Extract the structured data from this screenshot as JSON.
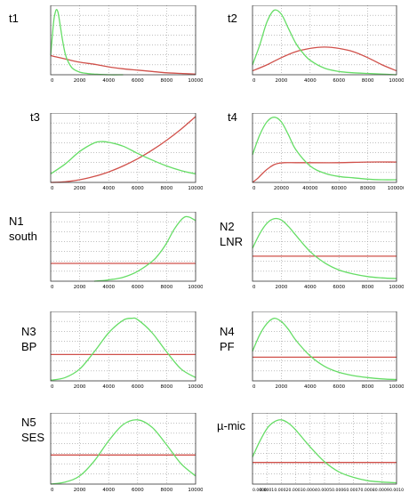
{
  "colors": {
    "prior": "#d0504a",
    "posterior": "#66dd66",
    "grid": "#999999",
    "frame": "#333333"
  },
  "chart_data": [
    {
      "id": "t1",
      "type": "line",
      "label_lines": [
        "t1"
      ],
      "xlim": [
        0,
        10000
      ],
      "ylim": [
        0,
        1
      ],
      "xticks": [
        "0",
        "2000",
        "4000",
        "6000",
        "8000",
        "10000"
      ],
      "series": [
        {
          "role": "prior",
          "color": "#d0504a",
          "x": [
            0,
            1000,
            2000,
            3000,
            4000,
            5000,
            6000,
            7000,
            8000,
            9000,
            10000
          ],
          "y": [
            0.29,
            0.24,
            0.19,
            0.16,
            0.12,
            0.09,
            0.07,
            0.05,
            0.03,
            0.02,
            0.01
          ]
        },
        {
          "role": "posterior",
          "color": "#66dd66",
          "x": [
            0,
            100,
            200,
            300,
            400,
            500,
            600,
            800,
            1000,
            1200,
            1500,
            2000,
            2500,
            3000,
            4000,
            5000
          ],
          "y": [
            0.3,
            0.55,
            0.8,
            0.93,
            0.99,
            0.95,
            0.83,
            0.55,
            0.32,
            0.2,
            0.1,
            0.04,
            0.02,
            0.01,
            0.0,
            0.0
          ]
        }
      ]
    },
    {
      "id": "t2",
      "type": "line",
      "label_lines": [
        "t2"
      ],
      "xlim": [
        0,
        10000
      ],
      "ylim": [
        0,
        1
      ],
      "xticks": [
        "0",
        "2000",
        "4000",
        "6000",
        "8000",
        "10000"
      ],
      "series": [
        {
          "role": "prior",
          "color": "#d0504a",
          "x": [
            0,
            1000,
            2000,
            3000,
            4000,
            5000,
            6000,
            7000,
            8000,
            9000,
            10000
          ],
          "y": [
            0.06,
            0.15,
            0.26,
            0.35,
            0.4,
            0.42,
            0.4,
            0.35,
            0.26,
            0.15,
            0.06
          ]
        },
        {
          "role": "posterior",
          "color": "#66dd66",
          "x": [
            0,
            500,
            1000,
            1500,
            2000,
            2500,
            3000,
            3500,
            4000,
            5000,
            6000,
            7000,
            8000,
            9000,
            10000
          ],
          "y": [
            0.15,
            0.45,
            0.8,
            0.98,
            0.92,
            0.7,
            0.48,
            0.33,
            0.22,
            0.1,
            0.05,
            0.03,
            0.02,
            0.01,
            0.0
          ]
        }
      ]
    },
    {
      "id": "t3",
      "type": "line",
      "label_lines": [
        "t3"
      ],
      "xlim": [
        0,
        10000
      ],
      "ylim": [
        0,
        1
      ],
      "xticks": [
        "0",
        "2000",
        "4000",
        "6000",
        "8000",
        "10000"
      ],
      "series": [
        {
          "role": "prior",
          "color": "#d0504a",
          "x": [
            0,
            1000,
            2000,
            3000,
            4000,
            5000,
            6000,
            7000,
            8000,
            9000,
            10000
          ],
          "y": [
            0.0,
            0.01,
            0.04,
            0.09,
            0.16,
            0.25,
            0.36,
            0.49,
            0.64,
            0.81,
            1.0
          ]
        },
        {
          "role": "posterior",
          "color": "#66dd66",
          "x": [
            0,
            1000,
            2000,
            3000,
            3500,
            4000,
            5000,
            6000,
            7000,
            8000,
            9000,
            10000
          ],
          "y": [
            0.13,
            0.28,
            0.47,
            0.6,
            0.62,
            0.61,
            0.55,
            0.44,
            0.34,
            0.25,
            0.18,
            0.13
          ]
        }
      ]
    },
    {
      "id": "t4",
      "type": "line",
      "label_lines": [
        "t4"
      ],
      "xlim": [
        0,
        100000
      ],
      "ylim": [
        0,
        1
      ],
      "xticks": [
        "0",
        "20000",
        "40000",
        "60000",
        "80000",
        "100000"
      ],
      "series": [
        {
          "role": "prior",
          "color": "#d0504a",
          "x": [
            0,
            4000,
            8000,
            12000,
            15000,
            18000,
            22000,
            30000,
            40000,
            60000,
            80000,
            100000
          ],
          "y": [
            0.0,
            0.07,
            0.16,
            0.23,
            0.27,
            0.29,
            0.3,
            0.3,
            0.3,
            0.3,
            0.31,
            0.31
          ]
        },
        {
          "role": "posterior",
          "color": "#66dd66",
          "x": [
            0,
            5000,
            10000,
            15000,
            20000,
            25000,
            30000,
            40000,
            50000,
            60000,
            70000,
            80000,
            90000,
            100000
          ],
          "y": [
            0.42,
            0.72,
            0.92,
            0.99,
            0.92,
            0.72,
            0.5,
            0.25,
            0.14,
            0.09,
            0.07,
            0.05,
            0.04,
            0.04
          ]
        }
      ]
    },
    {
      "id": "N1",
      "type": "line",
      "label_lines": [
        "N1",
        "south"
      ],
      "xlim": [
        0,
        10000
      ],
      "ylim": [
        0,
        1
      ],
      "xticks": [
        "0",
        "2000",
        "4000",
        "6000",
        "8000",
        "10000"
      ],
      "series": [
        {
          "role": "prior",
          "color": "#d0504a",
          "x": [
            0,
            10000
          ],
          "y": [
            0.27,
            0.27
          ]
        },
        {
          "role": "posterior",
          "color": "#66dd66",
          "x": [
            3000,
            4000,
            5000,
            6000,
            7000,
            7500,
            8000,
            8500,
            9000,
            9300,
            9600,
            10000
          ],
          "y": [
            0.0,
            0.02,
            0.06,
            0.15,
            0.3,
            0.42,
            0.58,
            0.78,
            0.93,
            0.98,
            0.97,
            0.92
          ]
        }
      ]
    },
    {
      "id": "N2",
      "type": "line",
      "label_lines": [
        "N2",
        "LNR"
      ],
      "xlim": [
        0,
        10000
      ],
      "ylim": [
        0,
        1
      ],
      "xticks": [
        "0",
        "2000",
        "4000",
        "6000",
        "8000",
        "10000"
      ],
      "series": [
        {
          "role": "prior",
          "color": "#d0504a",
          "x": [
            0,
            10000
          ],
          "y": [
            0.38,
            0.38
          ]
        },
        {
          "role": "posterior",
          "color": "#66dd66",
          "x": [
            0,
            500,
            1000,
            1500,
            2000,
            2500,
            3000,
            4000,
            5000,
            6000,
            7000,
            8000,
            9000,
            10000
          ],
          "y": [
            0.5,
            0.72,
            0.88,
            0.95,
            0.93,
            0.83,
            0.7,
            0.45,
            0.28,
            0.17,
            0.11,
            0.07,
            0.05,
            0.04
          ]
        }
      ]
    },
    {
      "id": "N3",
      "type": "line",
      "label_lines": [
        "N3",
        "BP"
      ],
      "xlim": [
        0,
        10000
      ],
      "ylim": [
        0,
        1
      ],
      "xticks": [
        "0",
        "2000",
        "4000",
        "6000",
        "8000",
        "10000"
      ],
      "series": [
        {
          "role": "prior",
          "color": "#d0504a",
          "x": [
            0,
            10000
          ],
          "y": [
            0.4,
            0.4
          ]
        },
        {
          "role": "posterior",
          "color": "#66dd66",
          "x": [
            0,
            1000,
            2000,
            3000,
            4000,
            5000,
            5600,
            6000,
            7000,
            8000,
            9000,
            10000
          ],
          "y": [
            0.01,
            0.05,
            0.18,
            0.44,
            0.73,
            0.92,
            0.95,
            0.93,
            0.73,
            0.44,
            0.18,
            0.05
          ]
        }
      ]
    },
    {
      "id": "N4",
      "type": "line",
      "label_lines": [
        "N4",
        "PF"
      ],
      "xlim": [
        0,
        10000
      ],
      "ylim": [
        0,
        1
      ],
      "xticks": [
        "0",
        "2000",
        "4000",
        "6000",
        "8000",
        "10000"
      ],
      "series": [
        {
          "role": "prior",
          "color": "#d0504a",
          "x": [
            0,
            10000
          ],
          "y": [
            0.36,
            0.36
          ]
        },
        {
          "role": "posterior",
          "color": "#66dd66",
          "x": [
            0,
            500,
            1000,
            1500,
            2000,
            2500,
            3000,
            4000,
            5000,
            6000,
            7000,
            8000,
            9000,
            10000
          ],
          "y": [
            0.45,
            0.7,
            0.87,
            0.95,
            0.9,
            0.78,
            0.62,
            0.38,
            0.22,
            0.13,
            0.08,
            0.05,
            0.03,
            0.02
          ]
        }
      ]
    },
    {
      "id": "N5",
      "type": "line",
      "label_lines": [
        "N5",
        "SES"
      ],
      "xlim": [
        0,
        10000
      ],
      "ylim": [
        0,
        1
      ],
      "xticks": [
        "0",
        "2000",
        "4000",
        "6000",
        "8000",
        "10000"
      ],
      "series": [
        {
          "role": "prior",
          "color": "#d0504a",
          "x": [
            0,
            10000
          ],
          "y": [
            0.43,
            0.43
          ]
        },
        {
          "role": "posterior",
          "color": "#66dd66",
          "x": [
            0,
            1000,
            2000,
            3000,
            4000,
            5000,
            6000,
            7000,
            8000,
            9000,
            10000
          ],
          "y": [
            0.0,
            0.03,
            0.12,
            0.34,
            0.64,
            0.88,
            0.95,
            0.84,
            0.58,
            0.3,
            0.12
          ]
        }
      ]
    },
    {
      "id": "mu-mic",
      "type": "line",
      "label_lines": [
        "µ-mic"
      ],
      "xlim": [
        0,
        0.001
      ],
      "ylim": [
        0,
        1
      ],
      "xticks": [
        "0.0000",
        "0.0001",
        "0.0002",
        "0.0003",
        "0.0004",
        "0.0005",
        "0.0006",
        "0.0007",
        "0.0008",
        "0.0009",
        "0.0010"
      ],
      "series": [
        {
          "role": "prior",
          "color": "#d0504a",
          "x": [
            0,
            0.001
          ],
          "y": [
            0.32,
            0.32
          ]
        },
        {
          "role": "posterior",
          "color": "#66dd66",
          "x": [
            0,
            5e-05,
            0.0001,
            0.00015,
            0.0002,
            0.00025,
            0.0003,
            0.0004,
            0.0005,
            0.0006,
            0.0007,
            0.0008,
            0.0009,
            0.001
          ],
          "y": [
            0.4,
            0.63,
            0.82,
            0.92,
            0.95,
            0.9,
            0.8,
            0.55,
            0.33,
            0.18,
            0.1,
            0.05,
            0.03,
            0.02
          ]
        }
      ]
    }
  ]
}
